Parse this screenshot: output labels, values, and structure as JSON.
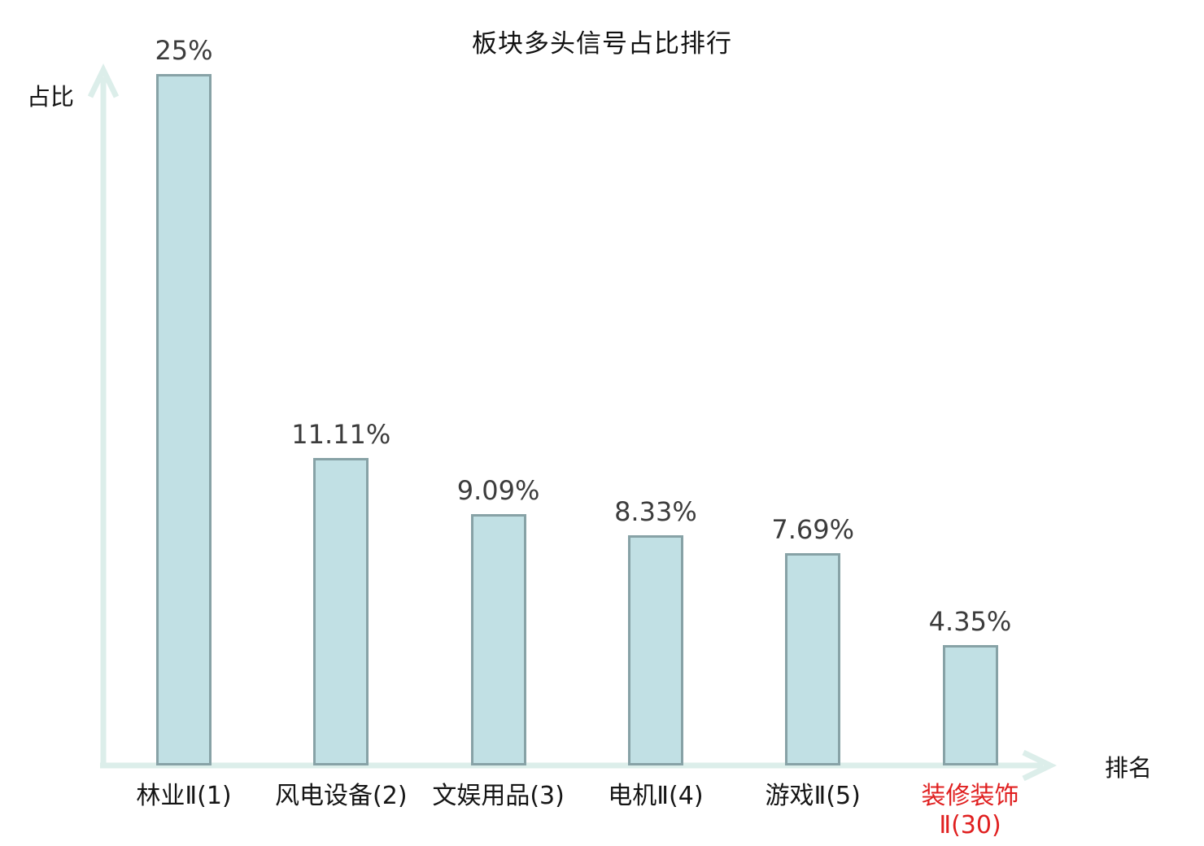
{
  "chart_data": {
    "type": "bar",
    "title": "板块多头信号占比排行",
    "ylabel": "占比",
    "xlabel": "排名",
    "categories": [
      "林业Ⅱ(1)",
      "风电设备(2)",
      "文娱用品(3)",
      "电机Ⅱ(4)",
      "游戏Ⅱ(5)",
      "装修装饰Ⅱ(30)"
    ],
    "values": [
      25,
      11.11,
      9.09,
      8.33,
      7.69,
      4.35
    ],
    "value_labels": [
      "25%",
      "11.11%",
      "9.09%",
      "8.33%",
      "7.69%",
      "4.35%"
    ],
    "category_label_lines": [
      [
        "林业Ⅱ(1)"
      ],
      [
        "风电设备(2)"
      ],
      [
        "文娱用品(3)"
      ],
      [
        "电机Ⅱ(4)"
      ],
      [
        "游戏Ⅱ(5)"
      ],
      [
        "装修装饰",
        "Ⅱ(30)"
      ]
    ],
    "highlight_index": 5,
    "ylim": [
      0,
      25
    ],
    "grid": false,
    "legend": false,
    "colors": {
      "bar_fill": "#c1e0e4",
      "bar_border": "#87a2a6",
      "axis": "#dceeea",
      "value_label": "#3c3c3c",
      "category_label": "#151515",
      "highlight_label": "#e02020",
      "title": "#111111"
    }
  }
}
